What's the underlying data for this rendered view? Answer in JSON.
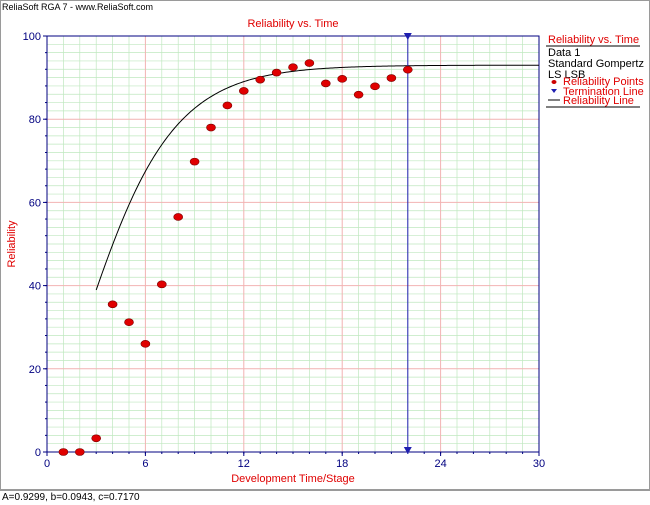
{
  "header": {
    "title": "ReliaSoft RGA 7 - www.ReliaSoft.com"
  },
  "footer": {
    "params": "A=0.9299, b=0.0943, c=0.7170"
  },
  "legend": {
    "title": "Reliability vs. Time",
    "data_name": "Data 1",
    "model": "Standard Gompertz",
    "method": "LS LSB",
    "items": [
      {
        "label": "Reliability Points",
        "symbol": "point"
      },
      {
        "label": "Termination Line",
        "symbol": "triangle"
      },
      {
        "label": "Reliability Line",
        "symbol": "line"
      }
    ]
  },
  "colors": {
    "accent_red": "#e00000",
    "axis_blue": "#000080",
    "termination_blue": "#1f1fb0",
    "grid_major": "#f2b2b2",
    "grid_minor": "#bfe8bf",
    "curve": "#000000"
  },
  "chart_data": {
    "type": "scatter",
    "title": "Reliability vs. Time",
    "xlabel": "Development Time/Stage",
    "ylabel": "Reliability",
    "xlim": [
      0,
      30
    ],
    "ylim": [
      0,
      100
    ],
    "xticks": [
      0,
      6,
      12,
      18,
      24,
      30
    ],
    "yticks": [
      0,
      20,
      40,
      60,
      80,
      100
    ],
    "grid": true,
    "legend_position": "right",
    "points": [
      {
        "x": 1,
        "y": 0
      },
      {
        "x": 2,
        "y": 0
      },
      {
        "x": 3,
        "y": 3.3
      },
      {
        "x": 4,
        "y": 35.5
      },
      {
        "x": 5,
        "y": 31.2
      },
      {
        "x": 6,
        "y": 26.0
      },
      {
        "x": 7,
        "y": 40.3
      },
      {
        "x": 8,
        "y": 56.5
      },
      {
        "x": 9,
        "y": 69.8
      },
      {
        "x": 10,
        "y": 78.0
      },
      {
        "x": 11,
        "y": 83.3
      },
      {
        "x": 12,
        "y": 86.8
      },
      {
        "x": 13,
        "y": 89.5
      },
      {
        "x": 14,
        "y": 91.2
      },
      {
        "x": 15,
        "y": 92.5
      },
      {
        "x": 16,
        "y": 93.5
      },
      {
        "x": 17,
        "y": 88.6
      },
      {
        "x": 18,
        "y": 89.7
      },
      {
        "x": 19,
        "y": 85.9
      },
      {
        "x": 20,
        "y": 87.9
      },
      {
        "x": 21,
        "y": 89.9
      },
      {
        "x": 22,
        "y": 91.9
      }
    ],
    "termination_x": 22,
    "model_params": {
      "A": 0.9299,
      "b": 0.0943,
      "c": 0.717
    },
    "curve_x_range": [
      3,
      30
    ]
  }
}
